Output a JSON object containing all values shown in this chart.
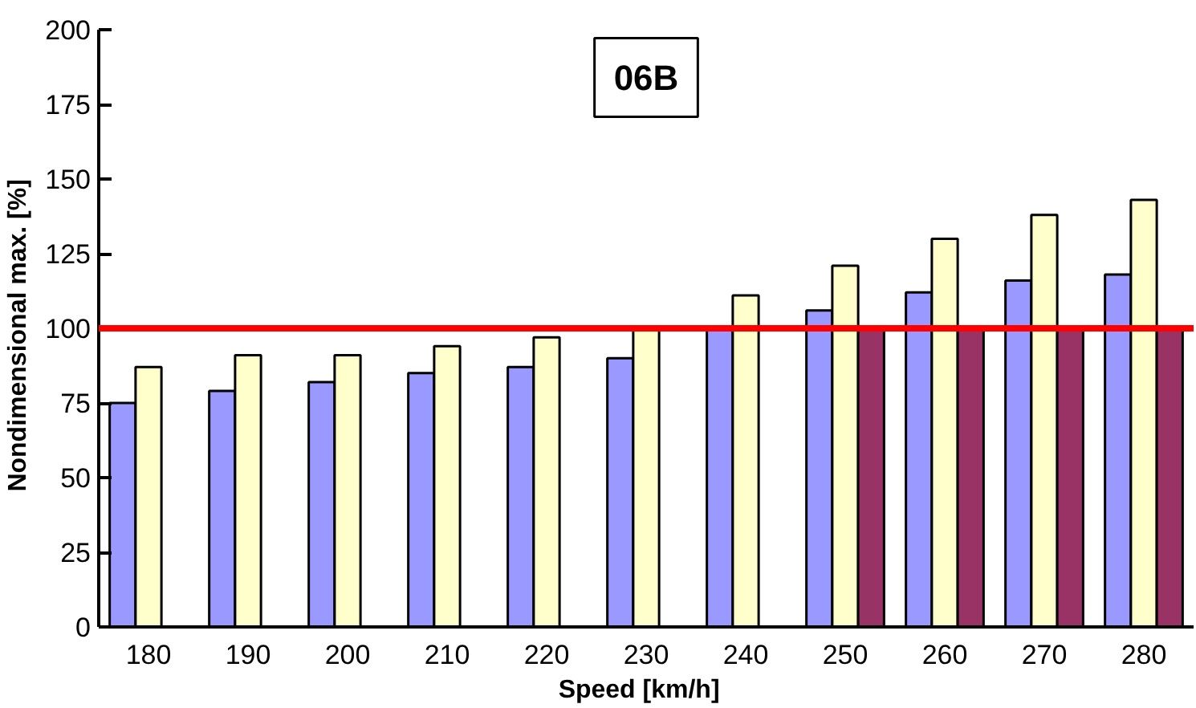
{
  "chart_data": {
    "type": "bar",
    "title": "06B",
    "xlabel": "Speed   [km/h]",
    "ylabel": "Nondimensional max.   [%]",
    "categories": [
      "180",
      "190",
      "200",
      "210",
      "220",
      "230",
      "240",
      "250",
      "260",
      "270",
      "280"
    ],
    "series": [
      {
        "color": "#9999ff",
        "values": [
          75,
          79,
          82,
          85,
          87,
          90,
          100,
          106,
          112,
          116,
          118
        ]
      },
      {
        "color": "#ffffcc",
        "values": [
          87,
          91,
          91,
          94,
          97,
          100,
          111,
          121,
          130,
          138,
          143
        ]
      },
      {
        "color": "#993366",
        "values": [
          null,
          null,
          null,
          null,
          null,
          null,
          null,
          100,
          100,
          100,
          100
        ]
      }
    ],
    "ylim": [
      0,
      200
    ],
    "yticks": [
      0,
      25,
      50,
      75,
      100,
      125,
      150,
      175,
      200
    ],
    "ref_lines": [
      {
        "axis": "y",
        "value": 100,
        "color": "#ff0000"
      }
    ],
    "grid": false
  }
}
